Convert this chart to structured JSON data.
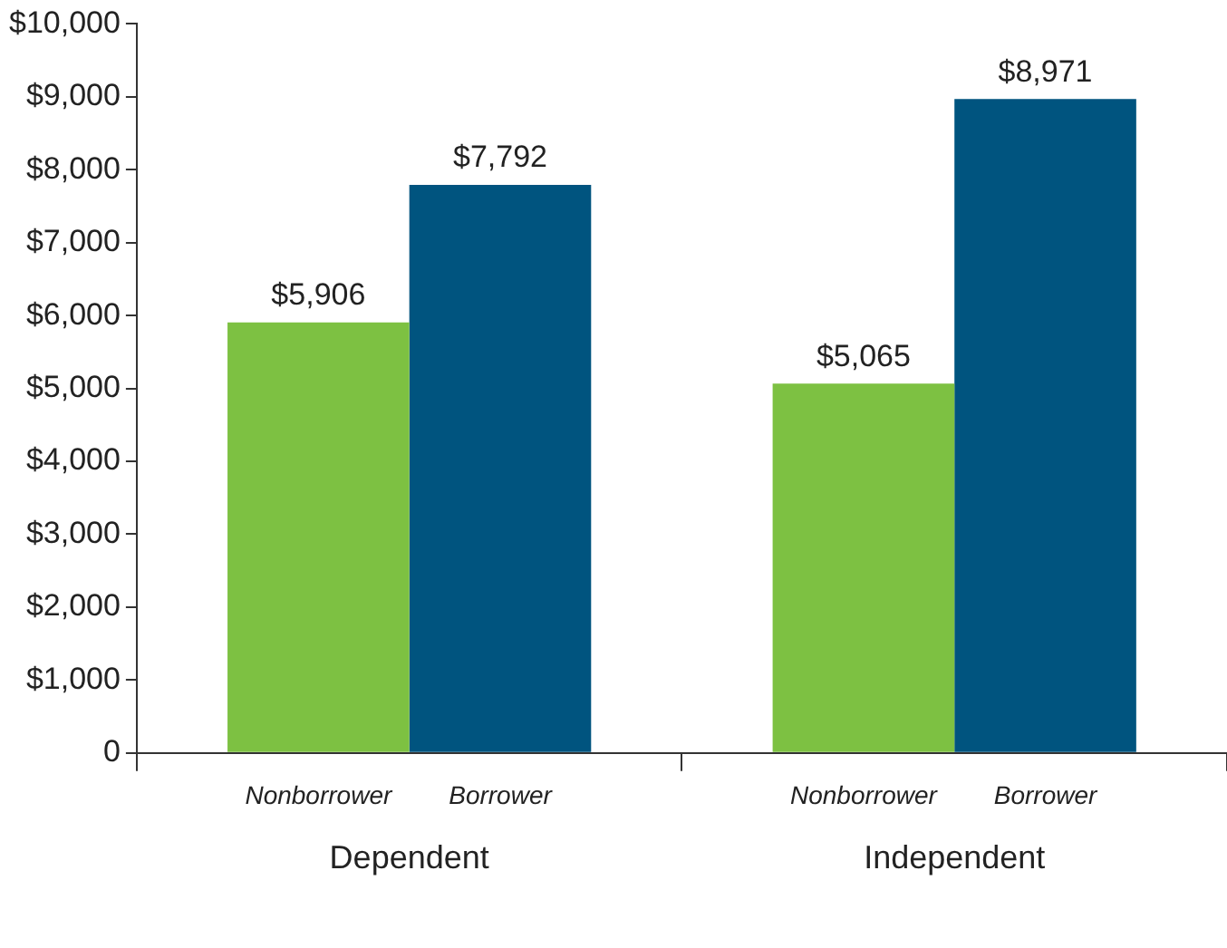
{
  "chart_data": {
    "type": "bar",
    "categories": [
      "Dependent",
      "Independent"
    ],
    "series": [
      {
        "name": "Nonborrower",
        "color": "#7dc142",
        "values": [
          5906,
          5065
        ],
        "value_labels": [
          "$5,906",
          "$5,065"
        ]
      },
      {
        "name": "Borrower",
        "color": "#00547f",
        "values": [
          7792,
          8971
        ],
        "value_labels": [
          "$7,792",
          "$8,971"
        ]
      }
    ],
    "ylim": [
      0,
      10000
    ],
    "yticks": [
      {
        "value": 0,
        "label": "0"
      },
      {
        "value": 1000,
        "label": "$1,000"
      },
      {
        "value": 2000,
        "label": "$2,000"
      },
      {
        "value": 3000,
        "label": "$3,000"
      },
      {
        "value": 4000,
        "label": "$4,000"
      },
      {
        "value": 5000,
        "label": "$5,000"
      },
      {
        "value": 6000,
        "label": "$6,000"
      },
      {
        "value": 7000,
        "label": "$7,000"
      },
      {
        "value": 8000,
        "label": "$8,000"
      },
      {
        "value": 9000,
        "label": "$9,000"
      },
      {
        "value": 10000,
        "label": "$10,000"
      }
    ],
    "grid": false,
    "legend": false
  }
}
